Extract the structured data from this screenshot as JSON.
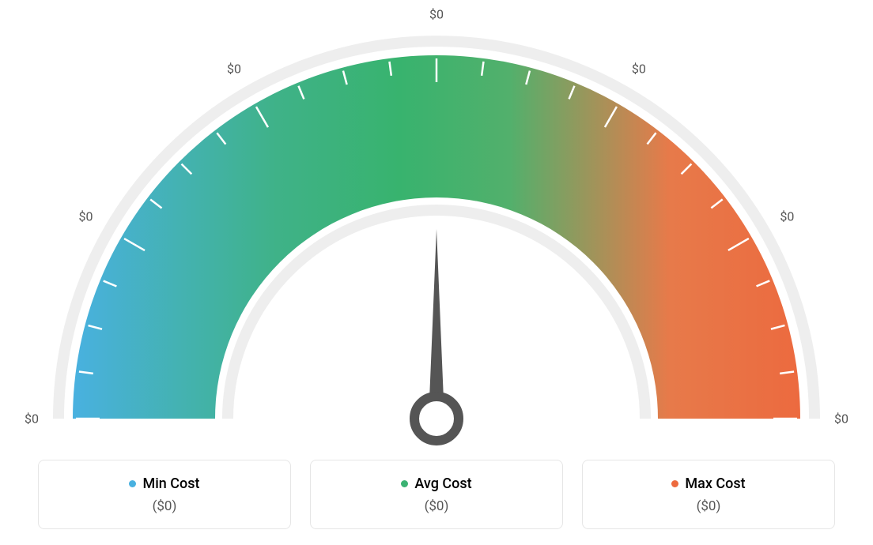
{
  "gauge": {
    "type": "gauge",
    "background_color": "#ffffff",
    "outer_radius": 460,
    "inner_radius": 280,
    "gradient_colors": [
      "#49b1e0",
      "#3fb288",
      "#38b36e",
      "#52b06c",
      "#e77a4a",
      "#ec6a3f"
    ],
    "gradient_stops": [
      0,
      0.28,
      0.45,
      0.6,
      0.82,
      1
    ],
    "track_color": "#eeeeee",
    "track_width": 14,
    "tick_color": "#ffffff",
    "tick_width": 2.5,
    "tick_length": 34,
    "major_tick_positions": [
      0,
      0.1666,
      0.3333,
      0.5,
      0.6666,
      0.8333,
      1.0
    ],
    "minor_ticks_between": 3,
    "needle_color": "#555555",
    "needle_value": 0.5,
    "scale_labels": [
      "$0",
      "$0",
      "$0",
      "$0",
      "$0",
      "$0",
      "$0"
    ],
    "scale_label_color": "#555555",
    "scale_label_fontsize": 16
  },
  "legend": {
    "items": [
      {
        "label": "Min Cost",
        "color": "#49b1e0",
        "value": "($0)"
      },
      {
        "label": "Avg Cost",
        "color": "#3bb273",
        "value": "($0)"
      },
      {
        "label": "Max Cost",
        "color": "#ed6a3e",
        "value": "($0)"
      }
    ],
    "box_border_color": "#e6e6e6",
    "box_border_radius": 8,
    "label_fontsize": 18,
    "value_fontsize": 17,
    "value_color": "#555555"
  }
}
